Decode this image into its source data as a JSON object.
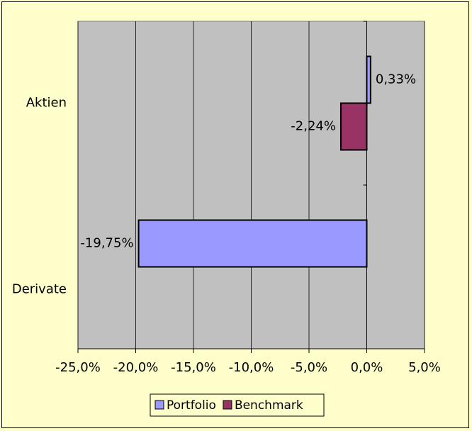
{
  "chart_data": {
    "type": "bar",
    "orientation": "horizontal",
    "categories": [
      "Aktien",
      "Derivate"
    ],
    "series": [
      {
        "name": "Portfolio",
        "values": [
          0.33,
          -19.75
        ],
        "labels": [
          "0,33%",
          "-19,75%"
        ],
        "color": "#9999ff"
      },
      {
        "name": "Benchmark",
        "values": [
          -2.24,
          null
        ],
        "labels": [
          "-2,24%",
          ""
        ],
        "color": "#993366"
      }
    ],
    "xlim": [
      -25,
      5
    ],
    "xticks": [
      -25,
      -20,
      -15,
      -10,
      -5,
      0,
      5
    ],
    "xtick_labels": [
      "-25,0%",
      "-20,0%",
      "-15,0%",
      "-10,0%",
      "-5,0%",
      "0,0%",
      "5,0%"
    ],
    "unit": "%",
    "grid": true,
    "plot_background": "#c0c0c0",
    "legend_position": "bottom"
  }
}
